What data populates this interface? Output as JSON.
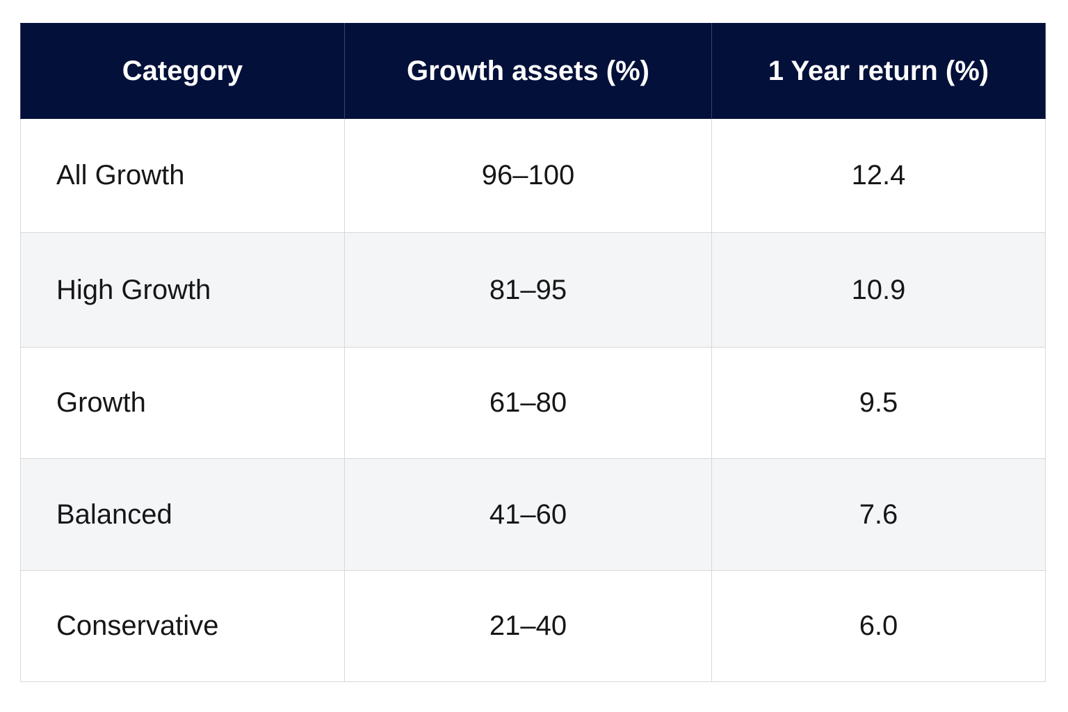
{
  "chart_data": {
    "type": "table",
    "columns": [
      "Category",
      "Growth assets (%)",
      "1 Year return (%)"
    ],
    "rows": [
      {
        "category": "All Growth",
        "growth_assets": "96–100",
        "one_year_return": "12.4"
      },
      {
        "category": "High Growth",
        "growth_assets": "81–95",
        "one_year_return": "10.9"
      },
      {
        "category": "Growth",
        "growth_assets": "61–80",
        "one_year_return": "9.5"
      },
      {
        "category": "Balanced",
        "growth_assets": "41–60",
        "one_year_return": "7.6"
      },
      {
        "category": "Conservative",
        "growth_assets": "21–40",
        "one_year_return": "6.0"
      }
    ]
  },
  "colors": {
    "header_bg": "#03103a",
    "header_text": "#ffffff",
    "row_alt_bg": "#f4f5f7",
    "border": "#d8d8d8"
  }
}
